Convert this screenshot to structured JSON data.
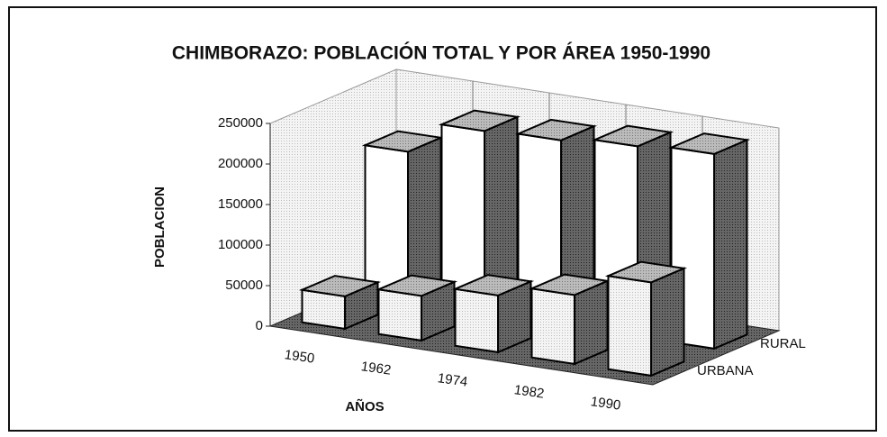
{
  "chart_data": {
    "type": "bar3d",
    "title": "CHIMBORAZO: POBLACIÓN TOTAL Y POR ÁREA 1950-1990",
    "y_label": "POBLACION",
    "x_label": "AÑOS",
    "categories": [
      "1950",
      "1962",
      "1974",
      "1982",
      "1990"
    ],
    "series": [
      {
        "name": "URBANA",
        "color": "#f2f2f2",
        "values": [
          40000,
          55000,
          70000,
          85000,
          115000
        ]
      },
      {
        "name": "RURAL",
        "color": "#ffffff",
        "values": [
          185000,
          225000,
          228000,
          235000,
          240000
        ]
      }
    ],
    "ylim": [
      0,
      250000
    ],
    "yticks": [
      0,
      50000,
      100000,
      150000,
      200000,
      250000
    ]
  }
}
